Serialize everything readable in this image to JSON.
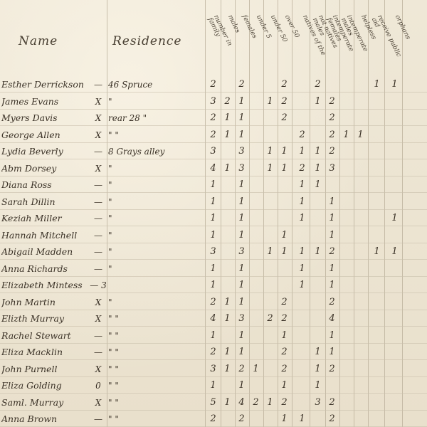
{
  "headers": {
    "name": "Name",
    "residence": "Residence",
    "columns": [
      "number in\nfamily",
      "males",
      "females",
      "under 5",
      "under 50",
      "over 50",
      "natives of the",
      "not natives\nmales",
      "intemperate\nfemales",
      "intemperate\nmales",
      "helpless",
      "receive public\naid",
      "orphans"
    ]
  },
  "rows": [
    {
      "name": "Esther Derrickson",
      "mark": "—",
      "residence": "46 Spruce",
      "counts": [
        "2",
        "",
        "2",
        "",
        "",
        "2",
        "",
        "2",
        "",
        "",
        "",
        "1",
        "1"
      ]
    },
    {
      "name": "James Evans",
      "mark": "X",
      "residence": "\"",
      "counts": [
        "3",
        "2",
        "1",
        "",
        "1",
        "2",
        "",
        "1",
        "2",
        "",
        "",
        "",
        ""
      ]
    },
    {
      "name": "Myers Davis",
      "mark": "X",
      "residence": "rear 28 \"",
      "counts": [
        "2",
        "1",
        "1",
        "",
        "",
        "2",
        "",
        "",
        "2",
        "",
        "",
        "",
        ""
      ]
    },
    {
      "name": "George Allen",
      "mark": "X",
      "residence": "\" \"",
      "counts": [
        "2",
        "1",
        "1",
        "",
        "",
        "",
        "2",
        "",
        "2",
        "1",
        "1",
        "",
        ""
      ]
    },
    {
      "name": "Lydia Beverly",
      "mark": "—",
      "residence": "8 Grays alley",
      "counts": [
        "3",
        "",
        "3",
        "",
        "1",
        "1",
        "1",
        "1",
        "2",
        "",
        "",
        "",
        ""
      ]
    },
    {
      "name": "Abm Dorsey",
      "mark": "X",
      "residence": "\"",
      "counts": [
        "4",
        "1",
        "3",
        "",
        "1",
        "1",
        "2",
        "1",
        "3",
        "",
        "",
        "",
        ""
      ]
    },
    {
      "name": "Diana Ross",
      "mark": "—",
      "residence": "\"",
      "counts": [
        "1",
        "",
        "1",
        "",
        "",
        "",
        "1",
        "1",
        "",
        "",
        "",
        "",
        ""
      ]
    },
    {
      "name": "Sarah Dillin",
      "mark": "—",
      "residence": "\"",
      "counts": [
        "1",
        "",
        "1",
        "",
        "",
        "",
        "1",
        "",
        "1",
        "",
        "",
        "",
        ""
      ]
    },
    {
      "name": "Keziah Miller",
      "mark": "—",
      "residence": "\"",
      "counts": [
        "1",
        "",
        "1",
        "",
        "",
        "",
        "1",
        "",
        "1",
        "",
        "",
        "",
        "1"
      ]
    },
    {
      "name": "Hannah Mitchell",
      "mark": "—",
      "residence": "\"",
      "counts": [
        "1",
        "",
        "1",
        "",
        "",
        "1",
        "",
        "",
        "1",
        "",
        "",
        "",
        ""
      ]
    },
    {
      "name": "Abigail Madden",
      "mark": "—",
      "residence": "\"",
      "counts": [
        "3",
        "",
        "3",
        "",
        "1",
        "1",
        "1",
        "1",
        "2",
        "",
        "",
        "1",
        "1"
      ]
    },
    {
      "name": "Anna Richards",
      "mark": "—",
      "residence": "\"",
      "counts": [
        "1",
        "",
        "1",
        "",
        "",
        "",
        "1",
        "",
        "1",
        "",
        "",
        "",
        ""
      ]
    },
    {
      "name": "Elizabeth Mintess",
      "mark": "— 3",
      "residence": "",
      "counts": [
        "1",
        "",
        "1",
        "",
        "",
        "",
        "1",
        "",
        "1",
        "",
        "",
        "",
        ""
      ]
    },
    {
      "name": "John Martin",
      "mark": "X",
      "residence": "\"",
      "counts": [
        "2",
        "1",
        "1",
        "",
        "",
        "2",
        "",
        "",
        "2",
        "",
        "",
        "",
        ""
      ]
    },
    {
      "name": "Elizth Murray",
      "mark": "X",
      "residence": "\" \"",
      "counts": [
        "4",
        "1",
        "3",
        "",
        "2",
        "2",
        "",
        "",
        "4",
        "",
        "",
        "",
        ""
      ]
    },
    {
      "name": "Rachel Stewart",
      "mark": "—",
      "residence": "\" \"",
      "counts": [
        "1",
        "",
        "1",
        "",
        "",
        "1",
        "",
        "",
        "1",
        "",
        "",
        "",
        ""
      ]
    },
    {
      "name": "Eliza Macklin",
      "mark": "—",
      "residence": "\" \"",
      "counts": [
        "2",
        "1",
        "1",
        "",
        "",
        "2",
        "",
        "1",
        "1",
        "",
        "",
        "",
        ""
      ]
    },
    {
      "name": "John Purnell",
      "mark": "X",
      "residence": "\" \"",
      "counts": [
        "3",
        "1",
        "2",
        "1",
        "",
        "2",
        "",
        "1",
        "2",
        "",
        "",
        "",
        ""
      ]
    },
    {
      "name": "Eliza Golding",
      "mark": "0",
      "residence": "\" \"",
      "counts": [
        "1",
        "",
        "1",
        "",
        "",
        "1",
        "",
        "1",
        "",
        "",
        "",
        "",
        ""
      ]
    },
    {
      "name": "Saml. Murray",
      "mark": "X",
      "residence": "\" \"",
      "counts": [
        "5",
        "1",
        "4",
        "2",
        "1",
        "2",
        "",
        "3",
        "2",
        "",
        "",
        "",
        ""
      ]
    },
    {
      "name": "Anna Brown",
      "mark": "—",
      "residence": "\" \"",
      "counts": [
        "2",
        "",
        "2",
        "",
        "",
        "1",
        "1",
        "",
        "2",
        "",
        "",
        "",
        ""
      ]
    }
  ]
}
